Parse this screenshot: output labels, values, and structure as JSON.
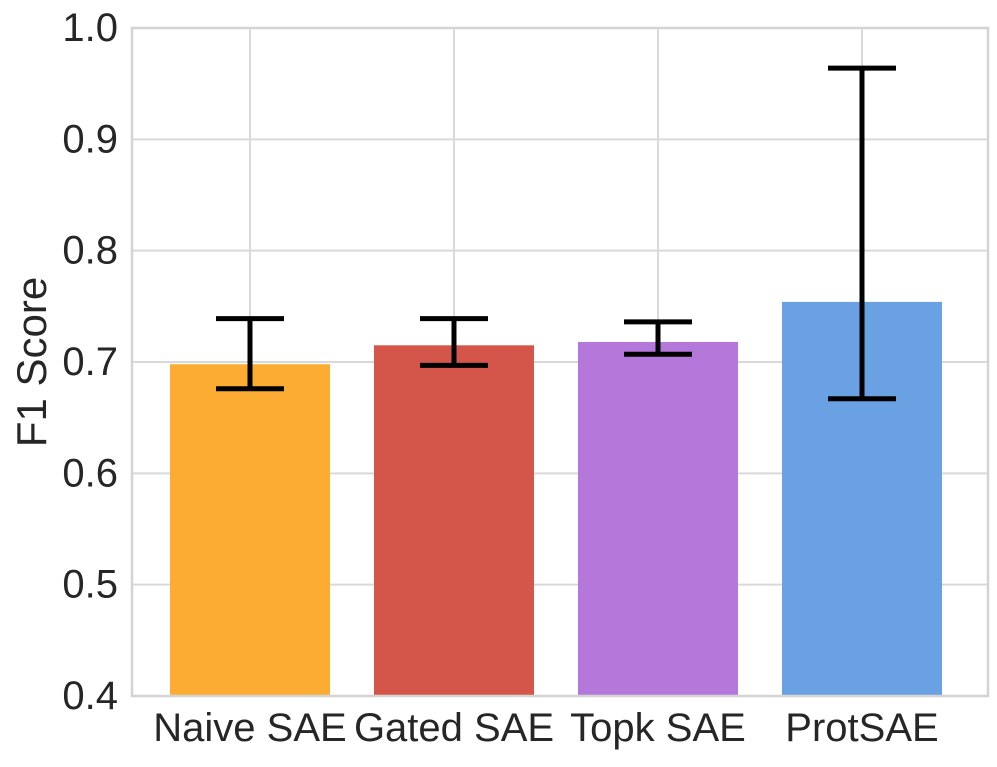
{
  "figure": {
    "background": "#ffffff"
  },
  "chart_data": {
    "type": "bar",
    "title": "",
    "xlabel": "",
    "ylabel": "F1 Score",
    "categories": [
      "Naive SAE",
      "Gated SAE",
      "Topk SAE",
      "ProtSAE"
    ],
    "values": [
      0.698,
      0.715,
      0.718,
      0.754
    ],
    "error_low": [
      0.676,
      0.697,
      0.707,
      0.667
    ],
    "error_high": [
      0.739,
      0.739,
      0.736,
      0.964
    ],
    "bar_colors": [
      "#FDAC33",
      "#D4564A",
      "#B478DB",
      "#6AA1E2"
    ],
    "ylim": [
      0.4,
      1.0
    ],
    "yticks": [
      0.4,
      0.5,
      0.6,
      0.7,
      0.8,
      0.9,
      1.0
    ],
    "ytick_labels": [
      "0.4",
      "0.5",
      "0.6",
      "0.7",
      "0.8",
      "0.9",
      "1.0"
    ],
    "grid": true,
    "legend": false,
    "grid_color": "#D9D9D9",
    "border_color": "#D4D4D4",
    "text_color": "#262626",
    "errorbar_color": "#000000"
  }
}
